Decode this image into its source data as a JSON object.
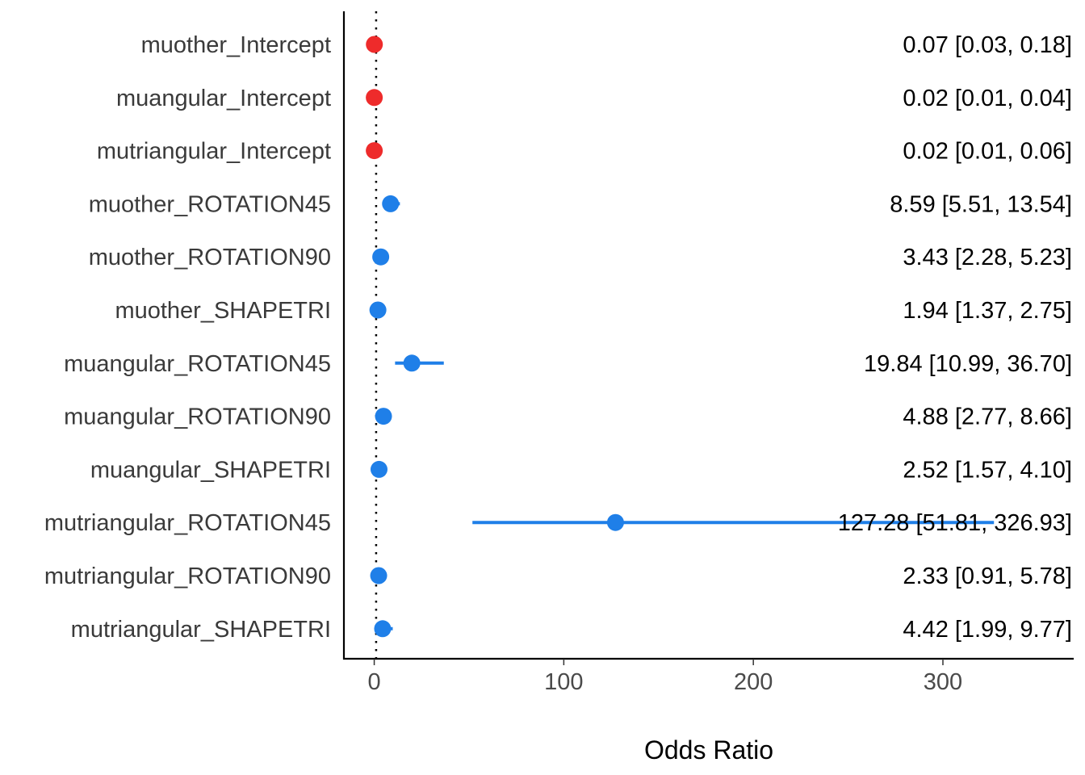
{
  "chart_data": {
    "type": "scatter",
    "subtype": "forest-plot",
    "title": "",
    "xlabel": "Odds Ratio",
    "ylabel": "",
    "xlim": [
      -16,
      369
    ],
    "xticks": [
      0,
      100,
      200,
      300
    ],
    "reference_line": 1,
    "grid": false,
    "legend": "none",
    "colors": {
      "intercept": "#ee2b2b",
      "effect": "#1f7fe8",
      "axis": "#000000"
    },
    "rows": [
      {
        "term": "muother_Intercept",
        "estimate": 0.07,
        "low": 0.03,
        "high": 0.18,
        "group": "intercept",
        "label": "0.07 [0.03, 0.18]"
      },
      {
        "term": "muangular_Intercept",
        "estimate": 0.02,
        "low": 0.01,
        "high": 0.04,
        "group": "intercept",
        "label": "0.02 [0.01, 0.04]"
      },
      {
        "term": "mutriangular_Intercept",
        "estimate": 0.02,
        "low": 0.01,
        "high": 0.06,
        "group": "intercept",
        "label": "0.02 [0.01, 0.06]"
      },
      {
        "term": "muother_ROTATION45",
        "estimate": 8.59,
        "low": 5.51,
        "high": 13.54,
        "group": "effect",
        "label": "8.59 [5.51, 13.54]"
      },
      {
        "term": "muother_ROTATION90",
        "estimate": 3.43,
        "low": 2.28,
        "high": 5.23,
        "group": "effect",
        "label": "3.43 [2.28, 5.23]"
      },
      {
        "term": "muother_SHAPETRI",
        "estimate": 1.94,
        "low": 1.37,
        "high": 2.75,
        "group": "effect",
        "label": "1.94 [1.37, 2.75]"
      },
      {
        "term": "muangular_ROTATION45",
        "estimate": 19.84,
        "low": 10.99,
        "high": 36.7,
        "group": "effect",
        "label": "19.84 [10.99, 36.70]"
      },
      {
        "term": "muangular_ROTATION90",
        "estimate": 4.88,
        "low": 2.77,
        "high": 8.66,
        "group": "effect",
        "label": "4.88 [2.77, 8.66]"
      },
      {
        "term": "muangular_SHAPETRI",
        "estimate": 2.52,
        "low": 1.57,
        "high": 4.1,
        "group": "effect",
        "label": "2.52 [1.57, 4.10]"
      },
      {
        "term": "mutriangular_ROTATION45",
        "estimate": 127.28,
        "low": 51.81,
        "high": 326.93,
        "group": "effect",
        "label": "127.28 [51.81, 326.93]"
      },
      {
        "term": "mutriangular_ROTATION90",
        "estimate": 2.33,
        "low": 0.91,
        "high": 5.78,
        "group": "effect",
        "label": "2.33 [0.91, 5.78]"
      },
      {
        "term": "mutriangular_SHAPETRI",
        "estimate": 4.42,
        "low": 1.99,
        "high": 9.77,
        "group": "effect",
        "label": "4.42 [1.99, 9.77]"
      }
    ]
  }
}
